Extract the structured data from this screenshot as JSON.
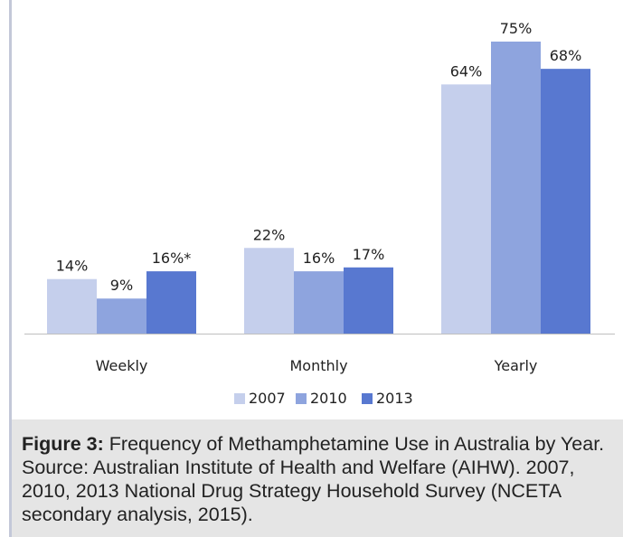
{
  "chart_data": {
    "type": "bar",
    "categories": [
      "Weekly",
      "Monthly",
      "Yearly"
    ],
    "series": [
      {
        "name": "2007",
        "values": [
          14,
          22,
          64
        ],
        "labels": [
          "14%",
          "22%",
          "64%"
        ],
        "color": "#c5cfec"
      },
      {
        "name": "2010",
        "values": [
          9,
          16,
          75
        ],
        "labels": [
          "9%",
          "16%",
          "75%"
        ],
        "color": "#8ea4de"
      },
      {
        "name": "2013",
        "values": [
          16,
          17,
          68
        ],
        "labels": [
          "16%*",
          "17%",
          "68%"
        ],
        "color": "#5878d0"
      }
    ],
    "ylim": [
      0,
      75
    ],
    "grid": false,
    "legend_position": "bottom",
    "xlabel": "",
    "ylabel": ""
  },
  "caption": {
    "label": "Figure 3:",
    "text": " Frequency of Methamphetamine Use in Australia by Year. Source: Australian Institute of Health and Welfare (AIHW). 2007, 2010, 2013 National Drug Strategy Household Survey (NCETA secondary analysis, 2015)."
  }
}
